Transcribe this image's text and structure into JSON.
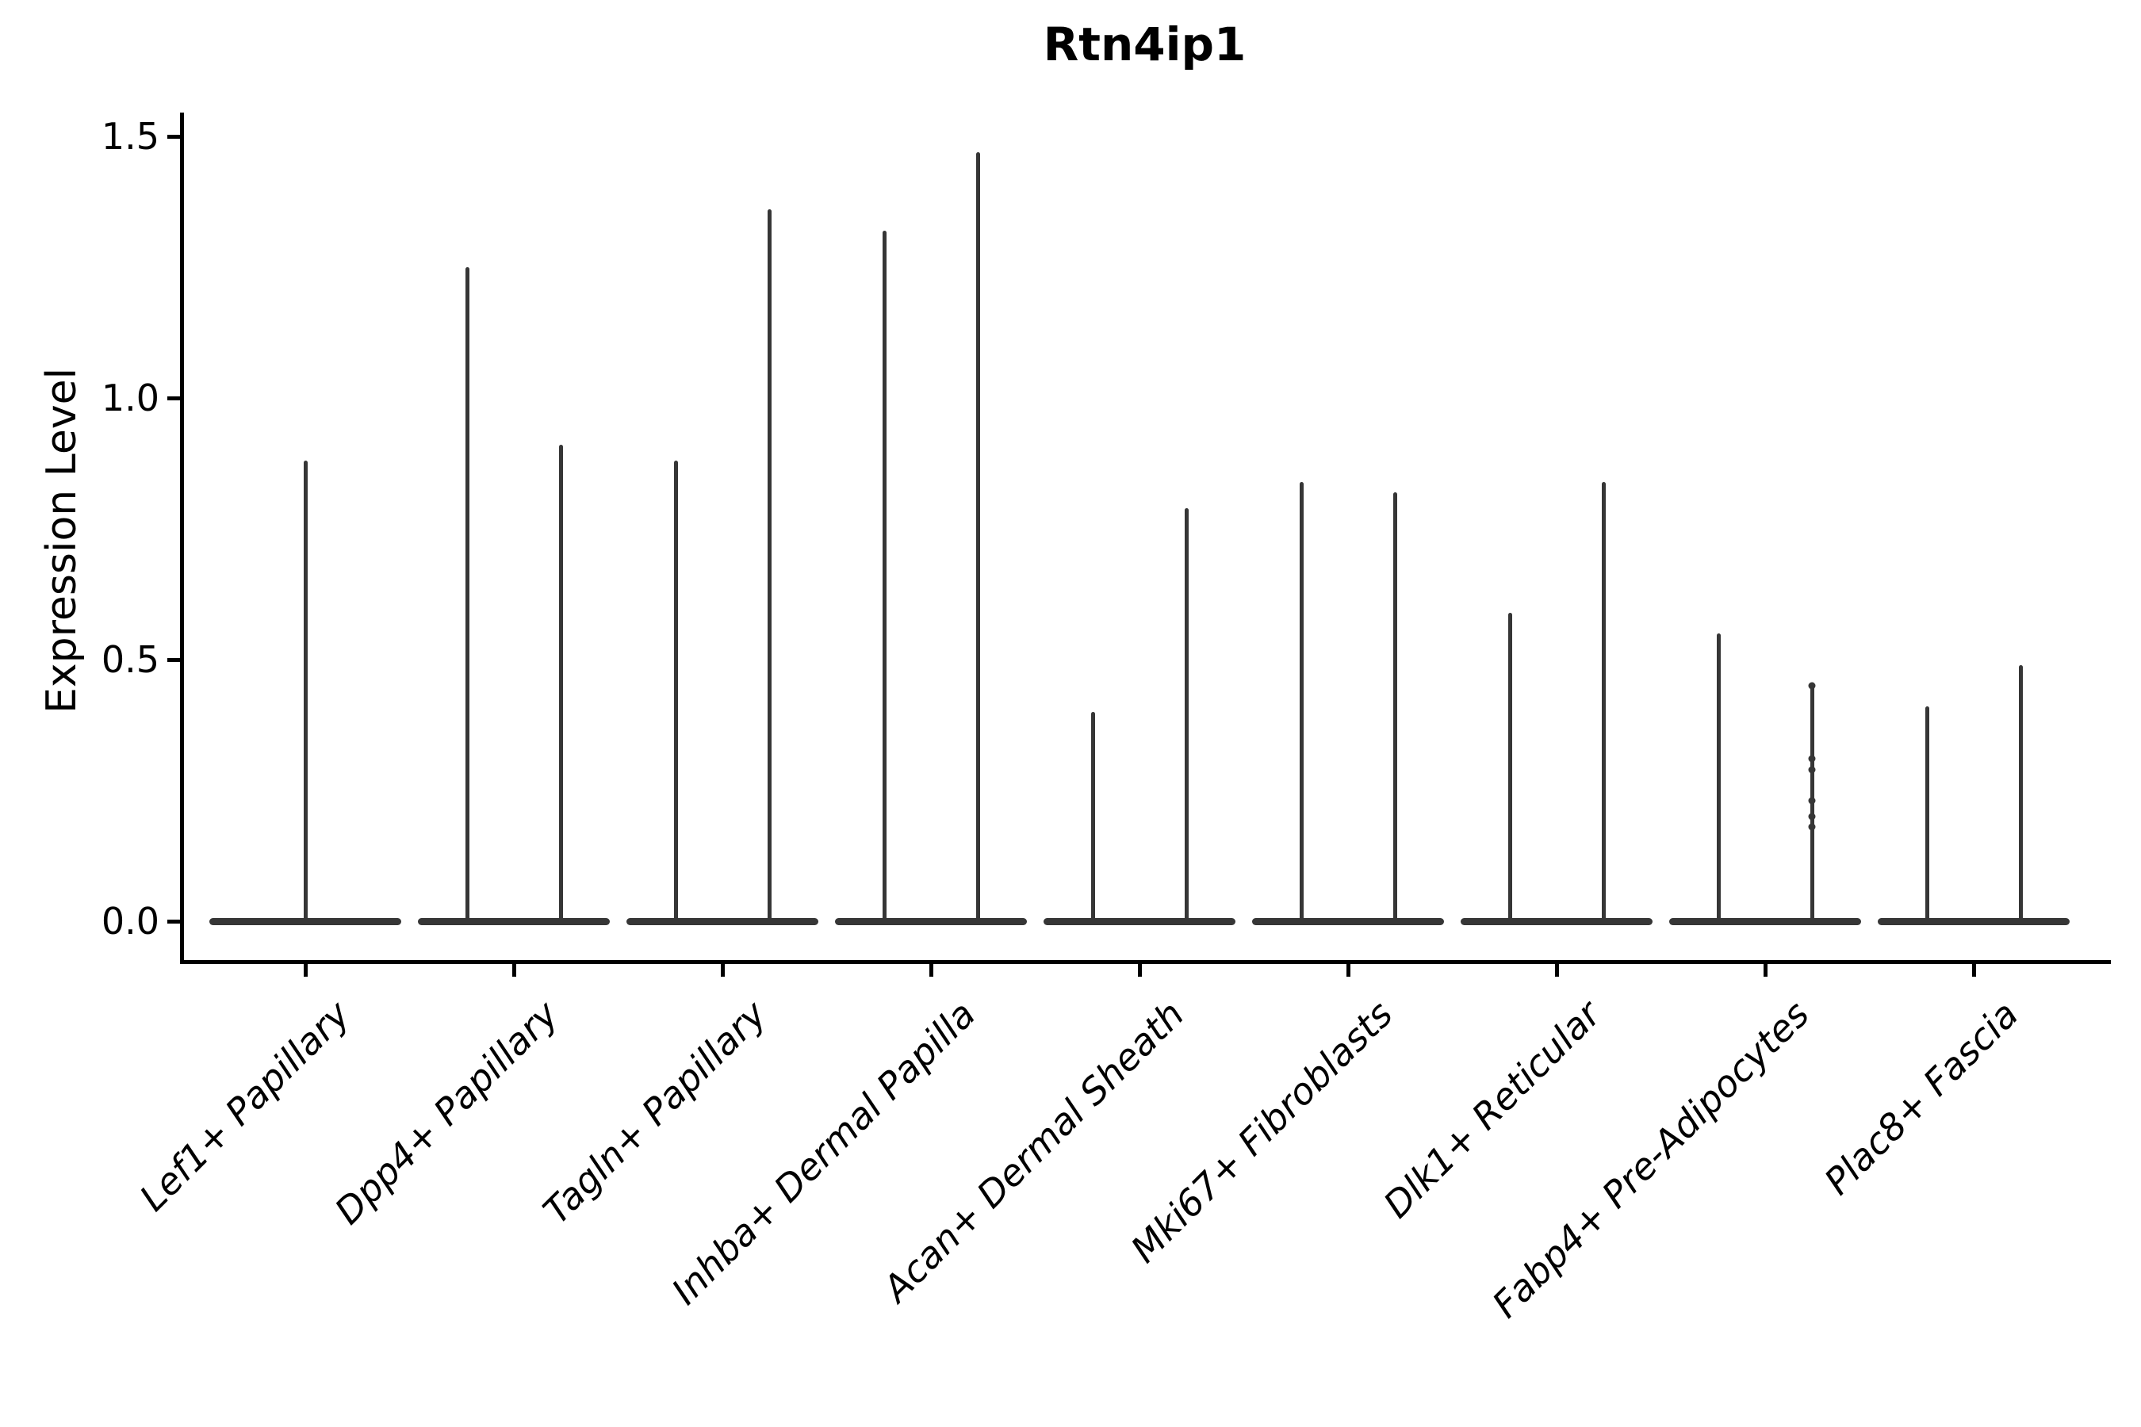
{
  "title": "Rtn4ip1",
  "ylabel": "Expression Level",
  "chart_data": {
    "type": "violin",
    "title": "Rtn4ip1",
    "xlabel": "",
    "ylabel": "Expression Level",
    "ylim": [
      -0.07,
      1.55
    ],
    "yticks": [
      0.0,
      0.5,
      1.0,
      1.5
    ],
    "ytick_labels": [
      "0.0",
      "0.5",
      "1.0",
      "1.5"
    ],
    "grid": false,
    "legend": false,
    "violin_color": "#363636",
    "axis_color": "#000000",
    "description": "Each category shows a flat violin body at expression 0 with thin range spikes; most cells have zero expression.",
    "categories": [
      "Lef1+ Papillary",
      "Dpp4+ Papillary",
      "Tagln+ Papillary",
      "Inhba+ Dermal Papilla",
      "Acan+ Dermal Sheath",
      "Mki67+ Fibroblasts",
      "Dlk1+ Reticular",
      "Fabp4+ Pre-Adipocytes",
      "Plac8+ Fascia"
    ],
    "groups": [
      {
        "label": "Lef1+ Papillary",
        "baseline_value": 0.0,
        "spikes": [
          {
            "offset": 0,
            "max": 0.88,
            "points": []
          }
        ]
      },
      {
        "label": "Dpp4+ Papillary",
        "baseline_value": 0.0,
        "spikes": [
          {
            "offset": -1,
            "max": 1.25,
            "points": []
          },
          {
            "offset": 1,
            "max": 0.91,
            "points": []
          }
        ]
      },
      {
        "label": "Tagln+ Papillary",
        "baseline_value": 0.0,
        "spikes": [
          {
            "offset": -1,
            "max": 0.88,
            "points": []
          },
          {
            "offset": 1,
            "max": 1.36,
            "points": []
          }
        ]
      },
      {
        "label": "Inhba+ Dermal Papilla",
        "baseline_value": 0.0,
        "spikes": [
          {
            "offset": -1,
            "max": 1.32,
            "points": []
          },
          {
            "offset": 1,
            "max": 1.47,
            "points": []
          }
        ]
      },
      {
        "label": "Acan+ Dermal Sheath",
        "baseline_value": 0.0,
        "spikes": [
          {
            "offset": -1,
            "max": 0.4,
            "points": []
          },
          {
            "offset": 1,
            "max": 0.79,
            "points": []
          }
        ]
      },
      {
        "label": "Mki67+ Fibroblasts",
        "baseline_value": 0.0,
        "spikes": [
          {
            "offset": -1,
            "max": 0.84,
            "points": []
          },
          {
            "offset": 1,
            "max": 0.82,
            "points": []
          }
        ]
      },
      {
        "label": "Dlk1+ Reticular",
        "baseline_value": 0.0,
        "spikes": [
          {
            "offset": -1,
            "max": 0.59,
            "points": []
          },
          {
            "offset": 1,
            "max": 0.84,
            "points": []
          }
        ]
      },
      {
        "label": "Fabp4+ Pre-Adipocytes",
        "baseline_value": 0.0,
        "spikes": [
          {
            "offset": -1,
            "max": 0.55,
            "points": []
          },
          {
            "offset": 1,
            "max": 0.45,
            "points": [
              0.45,
              0.31,
              0.29,
              0.23,
              0.2,
              0.18
            ]
          }
        ]
      },
      {
        "label": "Plac8+ Fascia",
        "baseline_value": 0.0,
        "spikes": [
          {
            "offset": -1,
            "max": 0.41,
            "points": []
          },
          {
            "offset": 1,
            "max": 0.49,
            "points": []
          }
        ]
      }
    ]
  }
}
